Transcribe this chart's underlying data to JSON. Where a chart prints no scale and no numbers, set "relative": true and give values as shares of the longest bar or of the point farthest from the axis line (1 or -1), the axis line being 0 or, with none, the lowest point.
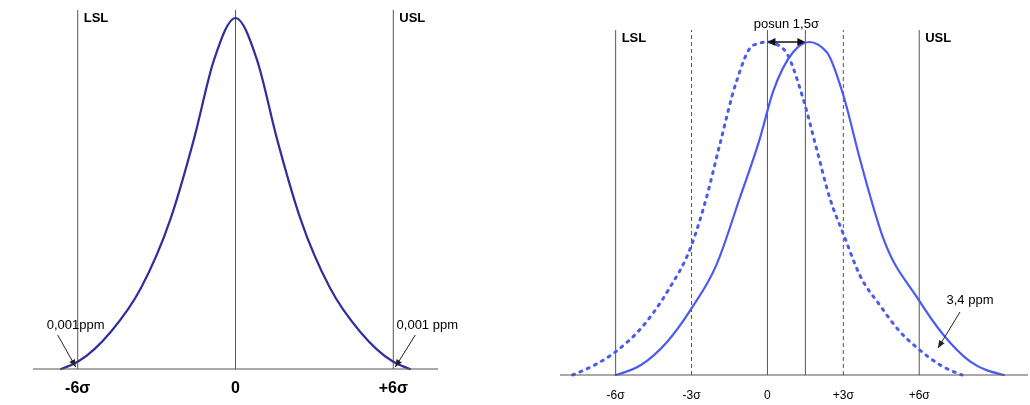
{
  "chart_data": [
    {
      "type": "line",
      "relative": true,
      "xlim": [
        -7.7,
        7.7
      ],
      "xticks": [
        {
          "value": -6,
          "label": "-6σ"
        },
        {
          "value": 0,
          "label": "0"
        },
        {
          "value": 6,
          "label": "+6σ"
        }
      ],
      "series": [
        {
          "color": "#2e2e9c",
          "line_style": "solid",
          "x": [
            -6.63,
            -5.97,
            -4.73,
            -3.6,
            -2.46,
            -1.58,
            -0.82,
            0,
            0.82,
            1.58,
            2.46,
            3.6,
            4.73,
            5.97,
            6.63
          ],
          "values": [
            0,
            0.022,
            0.107,
            0.23,
            0.43,
            0.655,
            0.88,
            1,
            0.88,
            0.655,
            0.43,
            0.23,
            0.107,
            0.022,
            0
          ]
        }
      ],
      "ref_lines": [
        {
          "axis": "x",
          "value": -6,
          "label": "LSL"
        },
        {
          "axis": "x",
          "value": 0,
          "label": null
        },
        {
          "axis": "x",
          "value": 6,
          "label": "USL"
        }
      ],
      "annotations": [
        {
          "text": "0,001ppm",
          "x": -6,
          "y": 0
        },
        {
          "text": "0,001 ppm",
          "x": 6,
          "y": 0
        }
      ],
      "grid": false
    },
    {
      "type": "line",
      "relative": true,
      "xlim": [
        -8.2,
        10.3
      ],
      "xticks": [
        {
          "value": -6,
          "label": "-6σ"
        },
        {
          "value": -3,
          "label": "-3σ"
        },
        {
          "value": 0,
          "label": "0"
        },
        {
          "value": 3,
          "label": "+3σ"
        },
        {
          "value": 6,
          "label": "+6σ"
        }
      ],
      "series": [
        {
          "color": "#4a5cf0",
          "line_style": "dotted",
          "x": [
            -7.7,
            -6,
            -5,
            -3.96,
            -3,
            -2.42,
            -1.89,
            -1.23,
            -0.57,
            0,
            0.62,
            1.41,
            1.94,
            2.47,
            3.02,
            3.65,
            4.44,
            5.24,
            5.94,
            6.83,
            7.69
          ],
          "values": [
            0,
            0.07,
            0.14,
            0.25,
            0.39,
            0.53,
            0.69,
            0.88,
            0.99,
            1,
            0.98,
            0.83,
            0.68,
            0.53,
            0.42,
            0.3,
            0.21,
            0.13,
            0.08,
            0.03,
            0
          ]
        },
        {
          "color": "#4a5cf0",
          "line_style": "solid",
          "x": [
            -6,
            -5,
            -3.96,
            -3,
            -2.02,
            -1.1,
            -0.3,
            0.22,
            1.02,
            1.65,
            2.34,
            3,
            3.65,
            4.58,
            5.94,
            6.96,
            8.02,
            9.34
          ],
          "values": [
            0,
            0.03,
            0.1,
            0.2,
            0.33,
            0.53,
            0.71,
            0.85,
            0.97,
            1,
            0.97,
            0.84,
            0.65,
            0.41,
            0.23,
            0.12,
            0.04,
            0
          ]
        }
      ],
      "ref_lines": [
        {
          "axis": "x",
          "value": -6,
          "label": "LSL"
        },
        {
          "axis": "x",
          "value": -3,
          "label": null,
          "line_style": "dashed"
        },
        {
          "axis": "x",
          "value": 0,
          "label": null
        },
        {
          "axis": "x",
          "value": 1.5,
          "label": null
        },
        {
          "axis": "x",
          "value": 3,
          "label": null,
          "line_style": "dashed"
        },
        {
          "axis": "x",
          "value": 6,
          "label": "USL"
        }
      ],
      "annotations": [
        "posun 1,5σ",
        "3,4 ppm"
      ],
      "grid": false
    }
  ]
}
